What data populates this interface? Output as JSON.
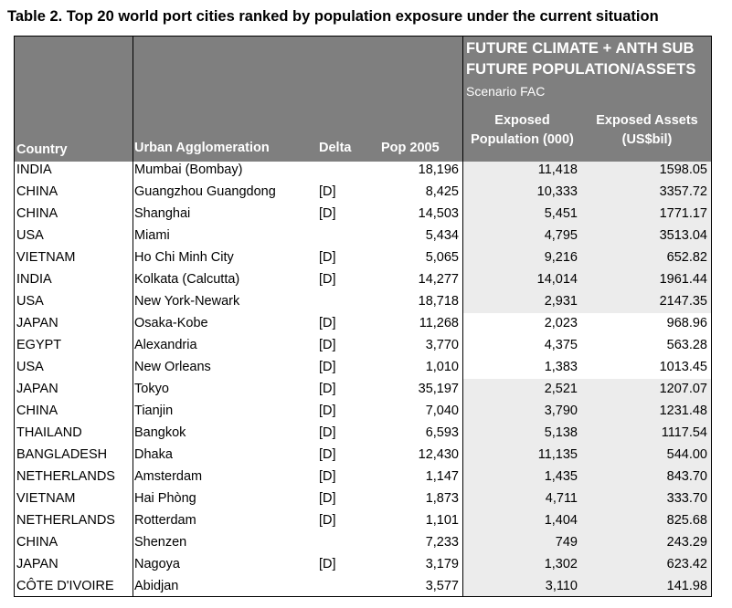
{
  "title": "Table 2. Top 20 world port cities ranked by population exposure under the current situation",
  "group_header": {
    "line1": "FUTURE CLIMATE + ANTH SUB",
    "line2": "FUTURE POPULATION/ASSETS",
    "scenario": "Scenario FAC"
  },
  "columns": {
    "country": "Country",
    "city": "Urban Agglomeration",
    "delta": "Delta",
    "pop": "Pop 2005",
    "exposed_pop_1": "Exposed",
    "exposed_pop_2": "Population (000)",
    "assets_1": "Exposed Assets",
    "assets_2": "(US$bil)"
  },
  "rows": [
    {
      "country": "INDIA",
      "city": "Mumbai (Bombay)",
      "delta": "",
      "pop": "18,196",
      "exposed": "11,418",
      "assets": "1598.05"
    },
    {
      "country": "CHINA",
      "city": "Guangzhou Guangdong",
      "delta": "[D]",
      "pop": "8,425",
      "exposed": "10,333",
      "assets": "3357.72"
    },
    {
      "country": "CHINA",
      "city": "Shanghai",
      "delta": "[D]",
      "pop": "14,503",
      "exposed": "5,451",
      "assets": "1771.17"
    },
    {
      "country": "USA",
      "city": "Miami",
      "delta": "",
      "pop": "5,434",
      "exposed": "4,795",
      "assets": "3513.04"
    },
    {
      "country": "VIETNAM",
      "city": "Ho Chi Minh City",
      "delta": "[D]",
      "pop": "5,065",
      "exposed": "9,216",
      "assets": "652.82"
    },
    {
      "country": "INDIA",
      "city": "Kolkata (Calcutta)",
      "delta": "[D]",
      "pop": "14,277",
      "exposed": "14,014",
      "assets": "1961.44"
    },
    {
      "country": "USA",
      "city": "New York-Newark",
      "delta": "",
      "pop": "18,718",
      "exposed": "2,931",
      "assets": "2147.35"
    },
    {
      "country": "JAPAN",
      "city": "Osaka-Kobe",
      "delta": "[D]",
      "pop": "11,268",
      "exposed": "2,023",
      "assets": "968.96"
    },
    {
      "country": "EGYPT",
      "city": "Alexandria",
      "delta": "[D]",
      "pop": "3,770",
      "exposed": "4,375",
      "assets": "563.28"
    },
    {
      "country": "USA",
      "city": "New Orleans",
      "delta": "[D]",
      "pop": "1,010",
      "exposed": "1,383",
      "assets": "1013.45"
    },
    {
      "country": "JAPAN",
      "city": "Tokyo",
      "delta": "[D]",
      "pop": "35,197",
      "exposed": "2,521",
      "assets": "1207.07"
    },
    {
      "country": "CHINA",
      "city": "Tianjin",
      "delta": "[D]",
      "pop": "7,040",
      "exposed": "3,790",
      "assets": "1231.48"
    },
    {
      "country": "THAILAND",
      "city": "Bangkok",
      "delta": "[D]",
      "pop": "6,593",
      "exposed": "5,138",
      "assets": "1117.54"
    },
    {
      "country": "BANGLADESH",
      "city": "Dhaka",
      "delta": "[D]",
      "pop": "12,430",
      "exposed": "11,135",
      "assets": "544.00"
    },
    {
      "country": "NETHERLANDS",
      "city": "Amsterdam",
      "delta": "[D]",
      "pop": "1,147",
      "exposed": "1,435",
      "assets": "843.70"
    },
    {
      "country": "VIETNAM",
      "city": "Hai Phòng",
      "delta": "[D]",
      "pop": "1,873",
      "exposed": "4,711",
      "assets": "333.70"
    },
    {
      "country": "NETHERLANDS",
      "city": "Rotterdam",
      "delta": "[D]",
      "pop": "1,101",
      "exposed": "1,404",
      "assets": "825.68"
    },
    {
      "country": "CHINA",
      "city": "Shenzen",
      "delta": "",
      "pop": "7,233",
      "exposed": "749",
      "assets": "243.29"
    },
    {
      "country": "JAPAN",
      "city": "Nagoya",
      "delta": "[D]",
      "pop": "3,179",
      "exposed": "1,302",
      "assets": "623.42"
    },
    {
      "country": "CÔTE D'IVOIRE",
      "city": "Abidjan",
      "delta": "",
      "pop": "3,577",
      "exposed": "3,110",
      "assets": "141.98"
    }
  ]
}
